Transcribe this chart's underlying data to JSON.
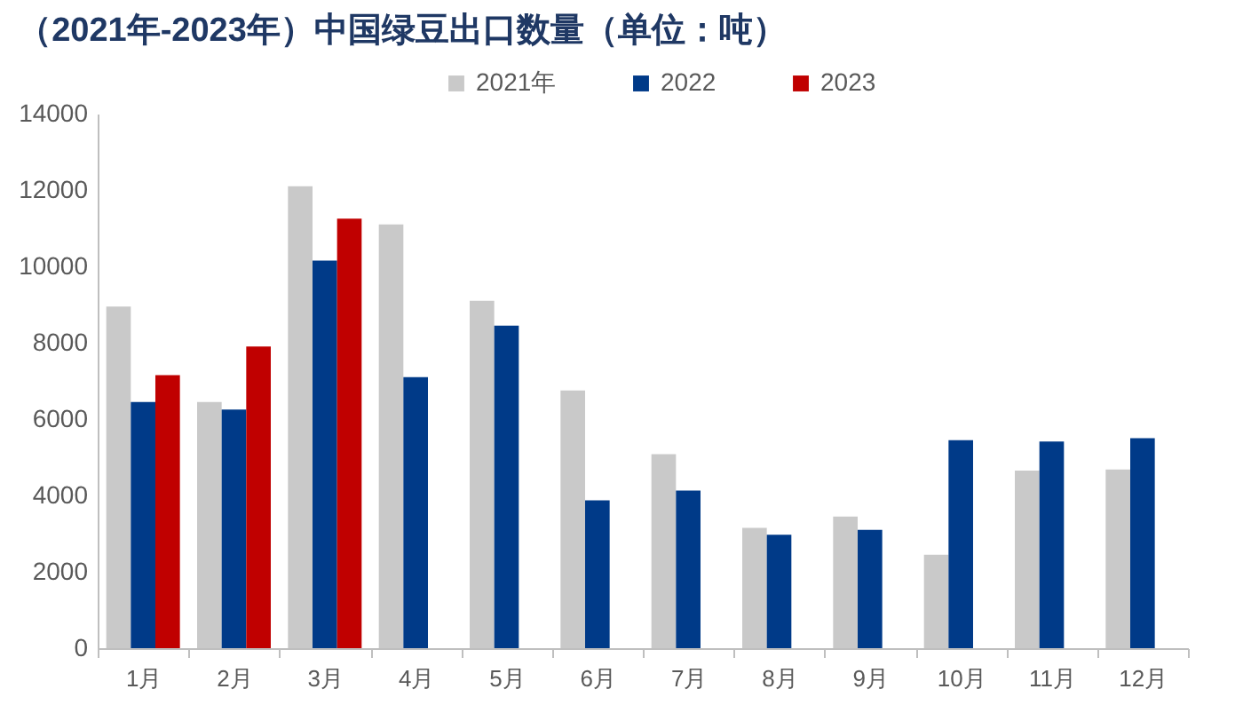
{
  "chart_data": {
    "type": "bar",
    "title": "（2021年-2023年）中国绿豆出口数量（单位：吨）",
    "categories": [
      "1月",
      "2月",
      "3月",
      "4月",
      "5月",
      "6月",
      "7月",
      "8月",
      "9月",
      "10月",
      "11月",
      "12月"
    ],
    "series": [
      {
        "name": "2021年",
        "color": "#c9c9c9",
        "values": [
          8950,
          6450,
          12100,
          11100,
          9100,
          6750,
          5080,
          3150,
          3450,
          2450,
          4650,
          4680
        ]
      },
      {
        "name": "2022",
        "color": "#003a88",
        "values": [
          6450,
          6250,
          10150,
          7100,
          8450,
          3870,
          4130,
          2970,
          3100,
          5450,
          5410,
          5500
        ]
      },
      {
        "name": "2023",
        "color": "#c00000",
        "values": [
          7150,
          7900,
          11250,
          null,
          null,
          null,
          null,
          null,
          null,
          null,
          null,
          null
        ]
      }
    ],
    "ylim": [
      0,
      14000
    ],
    "yticks": [
      0,
      2000,
      4000,
      6000,
      8000,
      10000,
      12000,
      14000
    ],
    "grid": false,
    "legend": "top"
  }
}
